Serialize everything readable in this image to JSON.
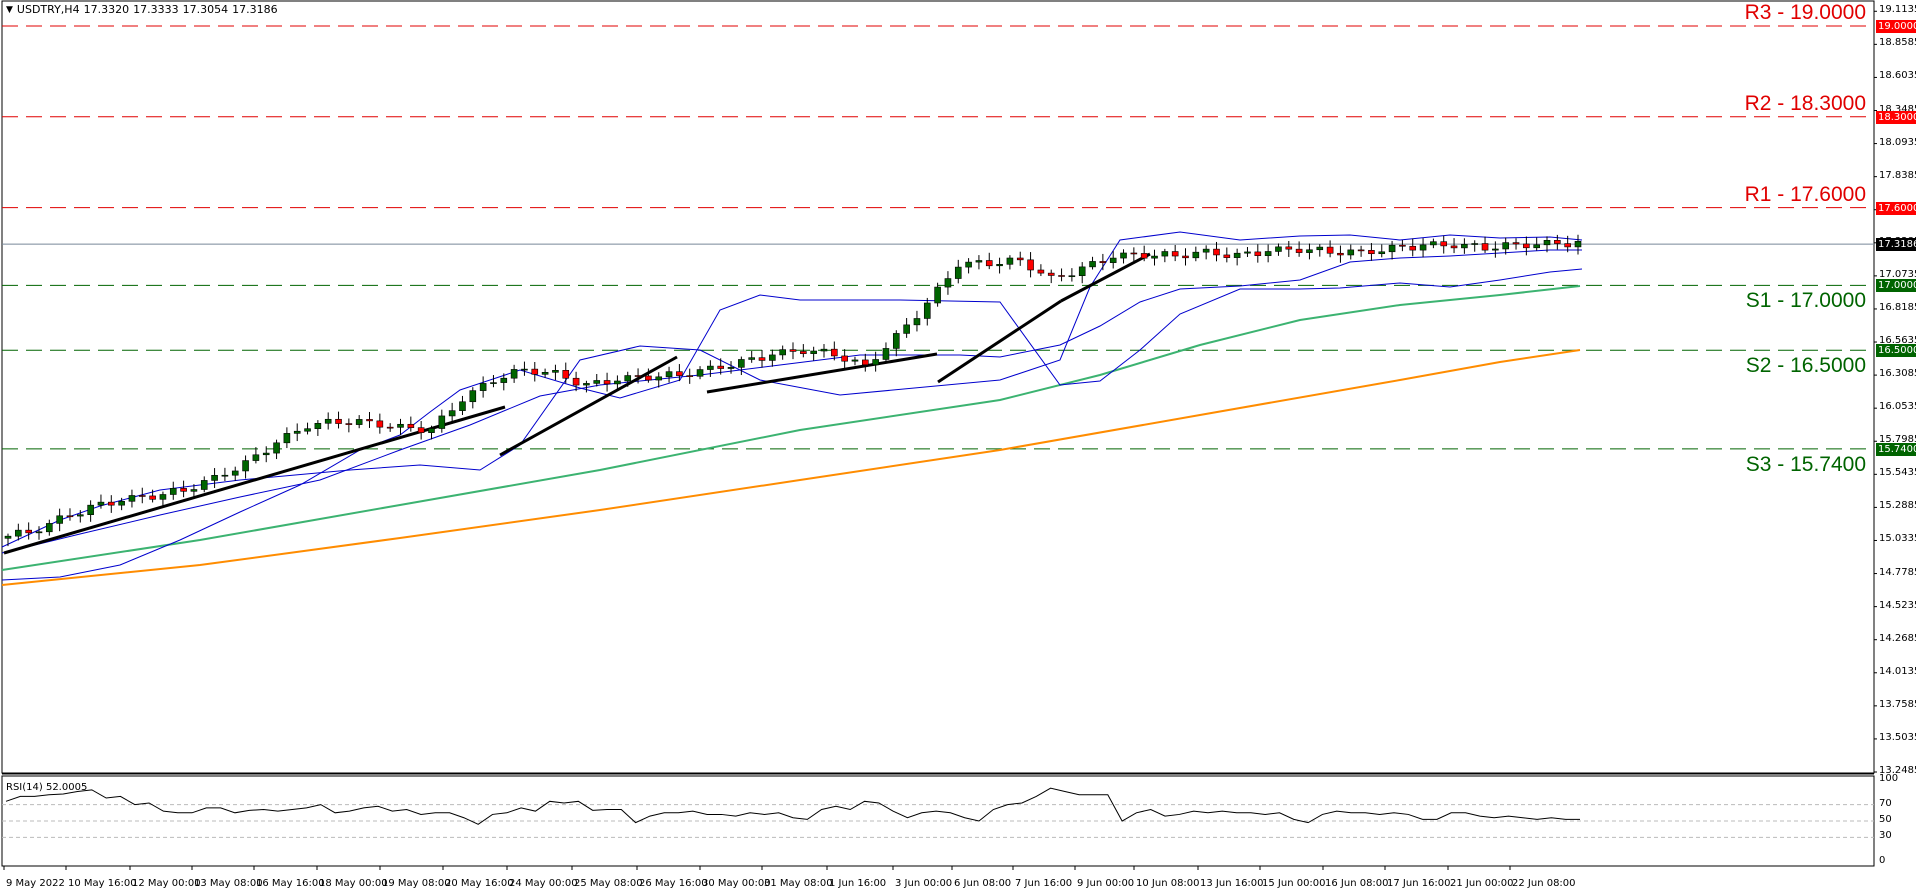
{
  "header": {
    "symbol_tf": "USDTRY,H4",
    "open": "17.3320",
    "high": "17.3333",
    "low": "17.3054",
    "close": "17.3186"
  },
  "levels": [
    {
      "name": "R3",
      "label": "R3 - 19.0000",
      "price": 19.0,
      "tag": "19.0000",
      "color": "#e00000"
    },
    {
      "name": "R2",
      "label": "R2 - 18.3000",
      "price": 18.3,
      "tag": "18.3000",
      "color": "#e00000"
    },
    {
      "name": "R1",
      "label": "R1 - 17.6000",
      "price": 17.6,
      "tag": "17.6000",
      "color": "#e00000"
    },
    {
      "name": "S1",
      "label": "S1 - 17.0000",
      "price": 17.0,
      "tag": "17.0000",
      "color": "#006400"
    },
    {
      "name": "S2",
      "label": "S2 - 16.5000",
      "price": 16.5,
      "tag": "16.5000",
      "color": "#006400"
    },
    {
      "name": "S3",
      "label": "S3 - 15.7400",
      "price": 15.74,
      "tag": "15.7400",
      "color": "#006400"
    }
  ],
  "current_price": {
    "value": 17.3186,
    "tag": "17.3186"
  },
  "price_axis": [
    "19.1135",
    "18.8585",
    "18.6035",
    "18.3485",
    "18.0935",
    "17.8385",
    "17.5835",
    "17.3285",
    "17.0735",
    "16.8185",
    "16.5635",
    "16.3085",
    "16.0535",
    "15.7985",
    "15.5435",
    "15.2885",
    "15.0335",
    "14.7785",
    "14.5235",
    "14.2685",
    "14.0135",
    "13.7585",
    "13.5035",
    "13.2485"
  ],
  "rsi": {
    "title": "RSI(14) 52.0005",
    "levels": [
      "100",
      "70",
      "50",
      "30",
      "0"
    ]
  },
  "time_axis": [
    "9 May 2022",
    "10 May 16:00",
    "12 May 00:00",
    "13 May 08:00",
    "16 May 16:00",
    "18 May 00:00",
    "19 May 08:00",
    "20 May 16:00",
    "24 May 00:00",
    "25 May 08:00",
    "26 May 16:00",
    "30 May 00:00",
    "31 May 08:00",
    "1 Jun 16:00",
    "3 Jun 00:00",
    "6 Jun 08:00",
    "7 Jun 16:00",
    "9 Jun 00:00",
    "10 Jun 08:00",
    "13 Jun 16:00",
    "15 Jun 00:00",
    "16 Jun 08:00",
    "17 Jun 16:00",
    "21 Jun 00:00",
    "22 Jun 08:00"
  ],
  "colors": {
    "bull": "#006400",
    "bear": "#ff0000",
    "bollinger": "#0000cd",
    "ma_green": "#3cb371",
    "ma_orange": "#ff8c00",
    "trendline": "#000000",
    "price_line": "#778899"
  },
  "chart_data": {
    "type": "candlestick",
    "title": "USDTRY,H4",
    "ylim": [
      13.2485,
      19.1135
    ],
    "x_labels": [
      "9 May 2022",
      "10 May 16:00",
      "12 May 00:00",
      "13 May 08:00",
      "16 May 16:00",
      "18 May 00:00",
      "19 May 08:00",
      "20 May 16:00",
      "24 May 00:00",
      "25 May 08:00",
      "26 May 16:00",
      "30 May 00:00",
      "31 May 08:00",
      "1 Jun 16:00",
      "3 Jun 00:00",
      "6 Jun 08:00",
      "7 Jun 16:00",
      "9 Jun 00:00",
      "10 Jun 08:00",
      "13 Jun 16:00",
      "15 Jun 00:00",
      "16 Jun 08:00",
      "17 Jun 16:00",
      "21 Jun 00:00",
      "22 Jun 08:00"
    ],
    "close_approx": [
      15.1,
      15.2,
      15.28,
      15.34,
      15.38,
      15.43,
      15.52,
      15.62,
      15.78,
      15.92,
      15.96,
      15.95,
      15.9,
      15.88,
      16.12,
      16.28,
      16.36,
      16.32,
      16.22,
      16.27,
      16.3,
      16.32,
      16.36,
      16.4,
      16.46,
      16.5,
      16.48,
      16.38,
      16.6,
      16.85,
      17.16,
      17.18,
      17.2,
      17.05,
      17.12,
      17.22,
      17.24,
      17.24,
      17.26,
      17.22,
      17.26,
      17.28,
      17.27,
      17.26,
      17.28,
      17.3,
      17.31,
      17.3,
      17.32,
      17.32,
      17.3186
    ],
    "horizontal_levels": {
      "R3": 19.0,
      "R2": 18.3,
      "R1": 17.6,
      "S1": 17.0,
      "S2": 16.5,
      "S3": 15.74
    },
    "indicators": [
      "Bollinger Bands",
      "Moving Average (green)",
      "Moving Average (orange)",
      "RSI(14)"
    ],
    "rsi_last": 52.0005,
    "rsi_levels": [
      70,
      50,
      30
    ]
  }
}
